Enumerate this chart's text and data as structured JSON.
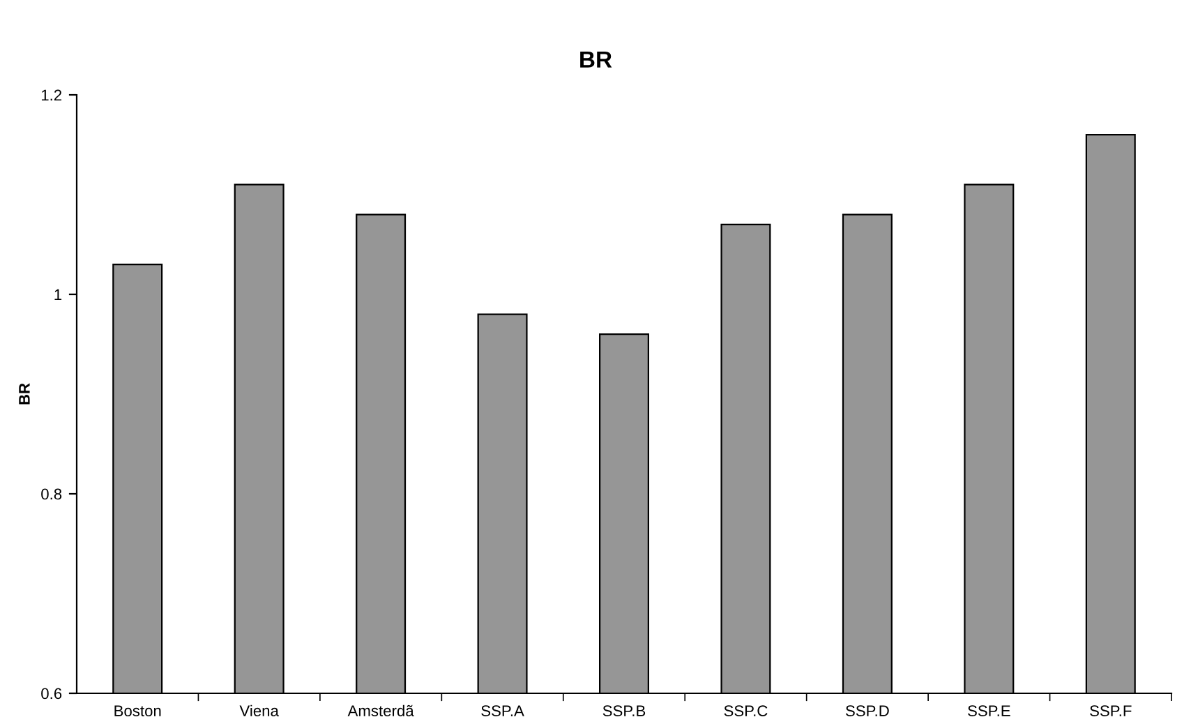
{
  "chart_data": {
    "type": "bar",
    "title": "BR",
    "ylabel": "BR",
    "categories": [
      "Boston",
      "Viena",
      "Amsterdã",
      "SSP.A",
      "SSP.B",
      "SSP.C",
      "SSP.D",
      "SSP.E",
      "SSP.F"
    ],
    "values": [
      1.03,
      1.11,
      1.08,
      0.98,
      0.96,
      1.07,
      1.08,
      1.11,
      1.16
    ],
    "color": "#969696",
    "ylim": [
      0.6,
      1.2
    ],
    "yticks": [
      0.6,
      0.8,
      1,
      1.2
    ],
    "grid": false,
    "legend": false
  }
}
